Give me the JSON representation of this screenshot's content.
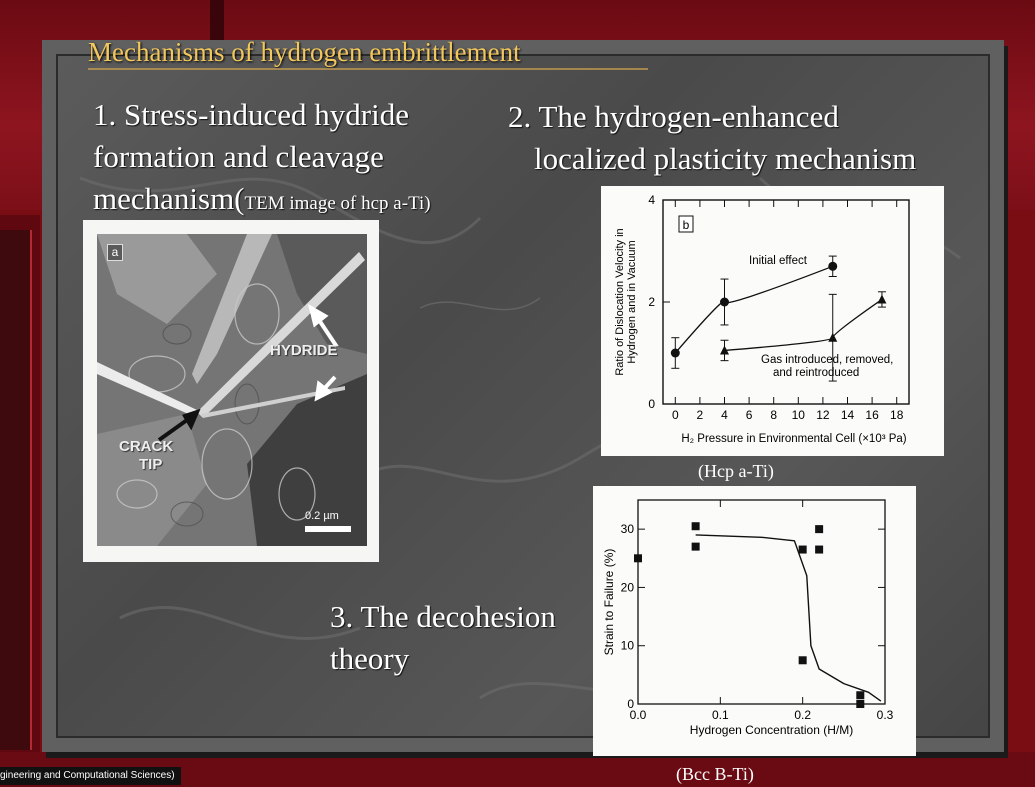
{
  "slide": {
    "title": "Mechanisms of hydrogen embrittlement",
    "item1_line1": "1. Stress-induced hydride",
    "item1_line2": "formation and cleavage",
    "item1_line3": "mechanism(",
    "item1_paren": "TEM image of hcp a-Ti)",
    "item2_line1": "2. The hydrogen-enhanced",
    "item2_line2": "localized plasticity mechanism",
    "item3_line1": "3. The decohesion",
    "item3_line2": "theory",
    "caption2": "(Hcp a-Ti)",
    "caption3": "(Bcc B-Ti)",
    "footer": "gineering and Computational Sciences)"
  },
  "figure1": {
    "panel_label": "a",
    "hydride_label": "HYDRIDE",
    "crack_label_1": "CRACK",
    "crack_label_2": "TIP",
    "scale_bar": "0.2 µm"
  },
  "chart_data": [
    {
      "type": "line",
      "panel_label": "b",
      "xlabel": "H₂ Pressure in Environmental Cell (×10³ Pa)",
      "ylabel_line1": "Ratio of Dislocation Velocity in",
      "ylabel_line2": "Hydrogen and in Vacuum",
      "xlim": [
        -1,
        19
      ],
      "ylim": [
        0,
        4
      ],
      "xticks": [
        0,
        2,
        4,
        6,
        8,
        10,
        12,
        14,
        16,
        18
      ],
      "yticks": [
        0,
        2,
        4
      ],
      "series": [
        {
          "name": "Initial effect",
          "marker": "circle",
          "points": [
            [
              0,
              1.0
            ],
            [
              4,
              2.0
            ],
            [
              12.8,
              2.7
            ]
          ],
          "errors": [
            0.3,
            0.45,
            0.2
          ]
        },
        {
          "name": "Gas introduced, removed, and reintroduced",
          "marker": "triangle",
          "points": [
            [
              4,
              1.05
            ],
            [
              12.8,
              1.3
            ],
            [
              16.8,
              2.05
            ]
          ],
          "errors": [
            0.2,
            0.85,
            0.15
          ]
        }
      ],
      "annotations": [
        "Initial effect",
        "Gas introduced, removed,",
        "and reintroduced"
      ]
    },
    {
      "type": "scatter",
      "xlabel": "Hydrogen Concentration (H/M)",
      "ylabel": "Strain to Failure (%)",
      "xlim": [
        0,
        0.3
      ],
      "ylim": [
        0,
        35
      ],
      "xtick_labels": [
        "0.0",
        "0.1",
        "0.2",
        "0.3"
      ],
      "xticks": [
        0.0,
        0.1,
        0.2,
        0.3
      ],
      "yticks": [
        0,
        10,
        20,
        30
      ],
      "points": [
        [
          0.0,
          25
        ],
        [
          0.07,
          30.5
        ],
        [
          0.07,
          27
        ],
        [
          0.2,
          26.5
        ],
        [
          0.22,
          30
        ],
        [
          0.22,
          26.5
        ],
        [
          0.2,
          7.5
        ],
        [
          0.27,
          1.5
        ],
        [
          0.27,
          0
        ]
      ],
      "curve": [
        [
          0.07,
          29
        ],
        [
          0.15,
          28.6
        ],
        [
          0.19,
          28
        ],
        [
          0.205,
          22
        ],
        [
          0.21,
          10
        ],
        [
          0.22,
          6
        ],
        [
          0.25,
          3.5
        ],
        [
          0.28,
          2
        ],
        [
          0.295,
          0.5
        ]
      ]
    }
  ]
}
